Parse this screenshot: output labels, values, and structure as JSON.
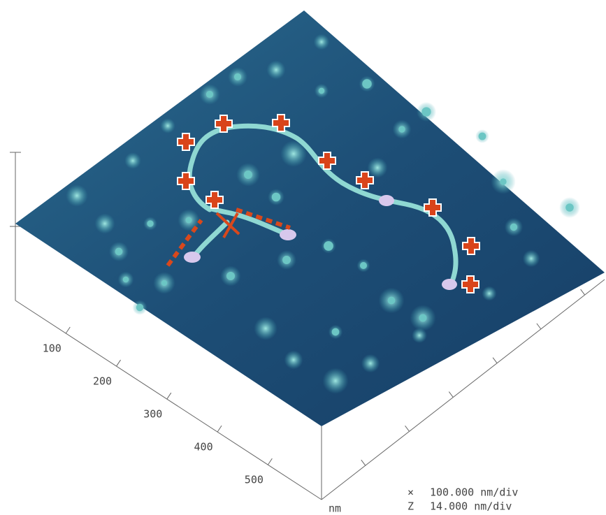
{
  "axis": {
    "ticks": [
      "100",
      "200",
      "300",
      "400",
      "500"
    ],
    "unit": "nm"
  },
  "scale": [
    {
      "symbol": "×",
      "value": "100.000 nm/div"
    },
    {
      "symbol": "Z",
      "value": "14.000 nm/div"
    }
  ]
}
